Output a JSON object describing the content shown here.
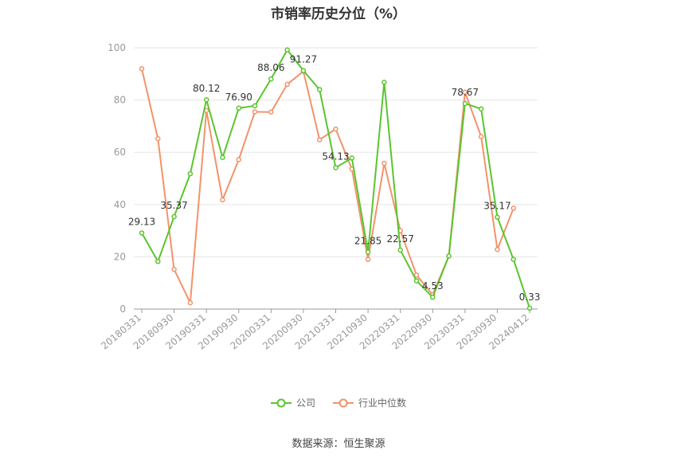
{
  "title": "市销率历史分位（%）",
  "source": "数据来源：恒生聚源",
  "colors": {
    "company": "#5ac52e",
    "industry": "#f2936b",
    "grid": "#e6e6e6",
    "axis": "#999999",
    "label": "#333333"
  },
  "chart_data": {
    "type": "line",
    "title": "市销率历史分位（%）",
    "xlabel": "",
    "ylabel": "",
    "ylim": [
      0,
      100
    ],
    "yticks": [
      0,
      20,
      40,
      60,
      80,
      100
    ],
    "grid": true,
    "legend_position": "bottom",
    "x": [
      "20180331",
      "20180630",
      "20180930",
      "20181231",
      "20190331",
      "20190630",
      "20190930",
      "20191231",
      "20200331",
      "20200630",
      "20200930",
      "20201231",
      "20210331",
      "20210630",
      "20210930",
      "20211231",
      "20220331",
      "20220630",
      "20220930",
      "20221231",
      "20230331",
      "20230630",
      "20230930",
      "20231231",
      "20240412"
    ],
    "xtick_labels": [
      "20180331",
      "20180930",
      "20190331",
      "20190930",
      "20200331",
      "20200930",
      "20210331",
      "20210930",
      "20220331",
      "20220930",
      "20230331",
      "20230930",
      "20240412"
    ],
    "series": [
      {
        "name": "公司",
        "color": "#5ac52e",
        "values": [
          29.13,
          18.2,
          35.37,
          51.8,
          80.12,
          58.0,
          76.9,
          77.8,
          88.06,
          99.2,
          91.27,
          84.0,
          54.13,
          57.8,
          21.85,
          86.8,
          22.57,
          10.8,
          4.53,
          20.3,
          78.67,
          76.6,
          35.17,
          19.0,
          0.33
        ],
        "data_labels": [
          {
            "index": 0,
            "text": "29.13"
          },
          {
            "index": 2,
            "text": "35.37"
          },
          {
            "index": 4,
            "text": "80.12"
          },
          {
            "index": 6,
            "text": "76.90"
          },
          {
            "index": 8,
            "text": "88.06"
          },
          {
            "index": 10,
            "text": "91.27"
          },
          {
            "index": 12,
            "text": "54.13"
          },
          {
            "index": 14,
            "text": "21.85"
          },
          {
            "index": 16,
            "text": "22.57"
          },
          {
            "index": 18,
            "text": "4.53"
          },
          {
            "index": 20,
            "text": "78.67"
          },
          {
            "index": 22,
            "text": "35.17"
          },
          {
            "index": 24,
            "text": "0.33"
          }
        ]
      },
      {
        "name": "行业中位数",
        "color": "#f2936b",
        "values": [
          92.0,
          65.2,
          15.2,
          2.4,
          76.0,
          41.8,
          57.2,
          75.5,
          75.4,
          86.0,
          91.0,
          64.8,
          68.9,
          53.6,
          19.0,
          55.8,
          30.0,
          13.0,
          5.5,
          20.3,
          83.0,
          66.0,
          22.8,
          38.6,
          null
        ]
      }
    ]
  }
}
